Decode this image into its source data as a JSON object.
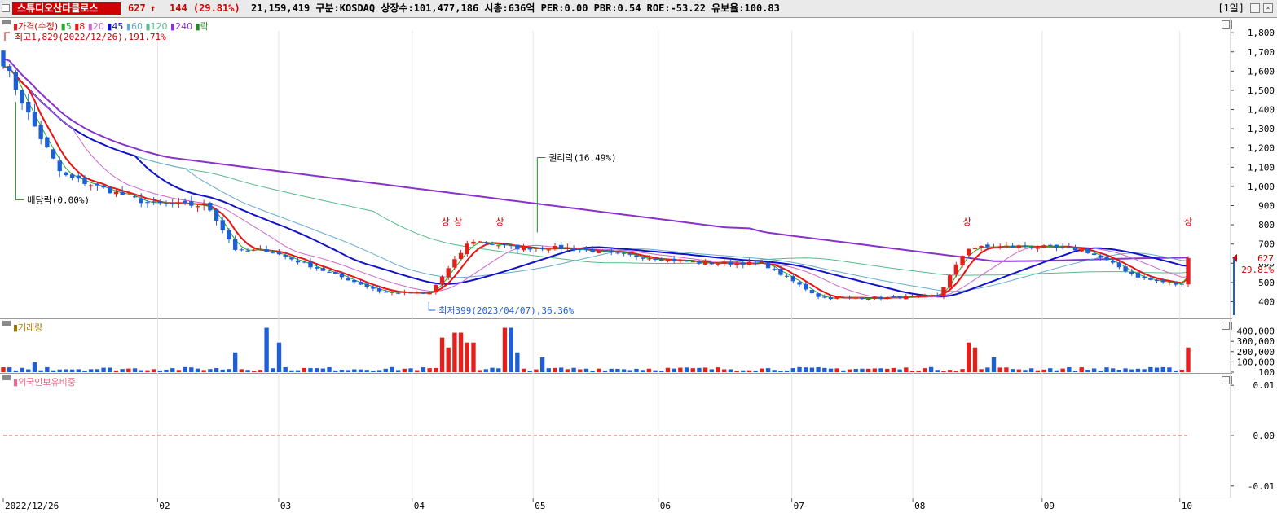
{
  "header": {
    "name": "스튜디오산타클로스",
    "price": "627",
    "arrow": "↑",
    "change": "144 (29.81%)",
    "info": "21,159,419  구분:KOSDAQ 상장수:101,477,186 시총:636억  PER:0.00 PBR:0.54 ROE:-53.22 유보율:100.83",
    "period": "[1일]"
  },
  "legend": {
    "main_prefix": "가격(수정)",
    "ma_labels": [
      "5",
      "8",
      "20",
      "45",
      "60",
      "120",
      "240"
    ],
    "suffix": "락",
    "volume": "거래량",
    "foreign": "외국인보유비중"
  },
  "colors": {
    "up": "#e3201b",
    "down": "#1f5fd6",
    "ma5": "#22aa22",
    "ma8": "#ee1111",
    "ma20": "#cc66cc",
    "ma45": "#1111cc",
    "ma60": "#66aacc",
    "ma120": "#55bb88",
    "ma240": "#8833cc"
  },
  "annotations": {
    "high": "최고1,829(2022/12/26),191.71%",
    "low": "최저399(2023/04/07),36.36%",
    "dividend": "배당락(0.00%)",
    "rights": "권리락(16.49%)",
    "upper_limit": "상",
    "current_price": "627",
    "current_change": "29.81%"
  },
  "chart_data": [
    {
      "type": "candlestick",
      "title": "",
      "x_tick_labels": [
        "2022/12/26",
        "02",
        "03",
        "04",
        "05",
        "06",
        "07",
        "08",
        "09",
        "10"
      ],
      "y_tick_labels": [
        "1,800",
        "1,700",
        "1,600",
        "1,500",
        "1,400",
        "1,300",
        "1,200",
        "1,100",
        "1,000",
        "900",
        "800",
        "700",
        "600",
        "500",
        "400"
      ],
      "ylim": [
        330,
        1860
      ],
      "approx_close": [
        {
          "date": "2022/12/26",
          "close": 1650
        },
        {
          "date": "2023/01/02",
          "close": 1330
        },
        {
          "date": "2023/01/09",
          "close": 1060
        },
        {
          "date": "2023/01/16",
          "close": 1010
        },
        {
          "date": "2023/01/30",
          "close": 910
        },
        {
          "date": "2023/02/13",
          "close": 900
        },
        {
          "date": "2023/02/20",
          "close": 660
        },
        {
          "date": "2023/02/27",
          "close": 670
        },
        {
          "date": "2023/03/13",
          "close": 560
        },
        {
          "date": "2023/03/27",
          "close": 450
        },
        {
          "date": "2023/04/07",
          "close": 440
        },
        {
          "date": "2023/04/17",
          "close": 720
        },
        {
          "date": "2023/04/28",
          "close": 680
        },
        {
          "date": "2023/05/10",
          "close": 680
        },
        {
          "date": "2023/05/25",
          "close": 640
        },
        {
          "date": "2023/06/12",
          "close": 600
        },
        {
          "date": "2023/06/26",
          "close": 600
        },
        {
          "date": "2023/07/10",
          "close": 420
        },
        {
          "date": "2023/07/24",
          "close": 420
        },
        {
          "date": "2023/08/07",
          "close": 430
        },
        {
          "date": "2023/08/14",
          "close": 680
        },
        {
          "date": "2023/08/28",
          "close": 690
        },
        {
          "date": "2023/09/11",
          "close": 670
        },
        {
          "date": "2023/09/25",
          "close": 520
        },
        {
          "date": "2023/10/05",
          "close": 483
        },
        {
          "date": "2023/10/06",
          "close": 627
        }
      ]
    },
    {
      "type": "bar",
      "title": "",
      "y_tick_labels": [
        "400,000",
        "300,000",
        "200,000",
        "100,000",
        "100"
      ],
      "ylim": [
        0,
        460000
      ]
    },
    {
      "type": "line",
      "title": "",
      "y_tick_labels": [
        "0.01",
        "0.00",
        "-0.01"
      ],
      "ylim": [
        -0.011,
        0.011
      ],
      "values": [
        0
      ]
    }
  ]
}
